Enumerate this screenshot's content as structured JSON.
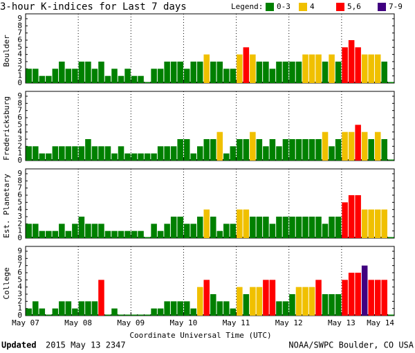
{
  "title": "3-hour K-indices for Last 7 days",
  "legend": {
    "title": "Legend:",
    "items": [
      {
        "label": "0-3",
        "color": "#008000",
        "min": 0,
        "max": 3
      },
      {
        "label": "4",
        "color": "#f0c000",
        "min": 4,
        "max": 4
      },
      {
        "label": "5,6",
        "color": "#ff0000",
        "min": 5,
        "max": 6
      },
      {
        "label": "7-9",
        "color": "#400080",
        "min": 7,
        "max": 9
      }
    ]
  },
  "x_axis": {
    "label": "Coordinate Universal Time (UTC)",
    "ticks": [
      "May 07",
      "May 08",
      "May 09",
      "May 10",
      "May 11",
      "May 12",
      "May 13",
      "May 14"
    ]
  },
  "footer": {
    "updated": "Updated",
    "timestamp": "2015 May 13 2347",
    "source": "NOAA/SWPC Boulder, CO USA"
  },
  "chart_data": [
    {
      "type": "bar",
      "ylabel": "Boulder",
      "ylim": [
        0,
        9
      ],
      "yticks": [
        0,
        1,
        2,
        3,
        4,
        5,
        6,
        7,
        8,
        9
      ],
      "values": [
        2,
        2,
        1,
        1,
        2,
        3,
        2,
        2,
        3,
        3,
        2,
        3,
        1,
        2,
        1,
        2,
        1,
        1,
        0,
        2,
        2,
        3,
        3,
        3,
        2,
        3,
        3,
        4,
        3,
        3,
        2,
        2,
        4,
        5,
        4,
        3,
        3,
        2,
        3,
        3,
        3,
        3,
        4,
        4,
        4,
        3,
        4,
        3,
        5,
        6,
        5,
        4,
        4,
        4,
        3,
        0
      ]
    },
    {
      "type": "bar",
      "ylabel": "Fredericksburg",
      "ylim": [
        0,
        9
      ],
      "yticks": [
        0,
        1,
        2,
        3,
        4,
        5,
        6,
        7,
        8,
        9
      ],
      "values": [
        2,
        2,
        1,
        1,
        2,
        2,
        2,
        2,
        2,
        3,
        2,
        2,
        2,
        1,
        2,
        1,
        1,
        1,
        1,
        1,
        2,
        2,
        2,
        3,
        3,
        1,
        2,
        3,
        3,
        4,
        1,
        2,
        3,
        3,
        4,
        3,
        2,
        3,
        2,
        3,
        3,
        3,
        3,
        3,
        3,
        4,
        2,
        3,
        4,
        4,
        5,
        4,
        3,
        4,
        3,
        0
      ]
    },
    {
      "type": "bar",
      "ylabel": "Est. Planetary",
      "ylim": [
        0,
        9
      ],
      "yticks": [
        0,
        1,
        2,
        3,
        4,
        5,
        6,
        7,
        8,
        9
      ],
      "values": [
        2,
        2,
        1,
        1,
        1,
        2,
        1,
        2,
        3,
        2,
        2,
        2,
        1,
        1,
        1,
        1,
        1,
        1,
        0,
        2,
        1,
        2,
        3,
        3,
        2,
        2,
        3,
        4,
        3,
        1,
        2,
        2,
        4,
        4,
        3,
        3,
        3,
        2,
        3,
        3,
        3,
        3,
        3,
        3,
        3,
        2,
        3,
        3,
        5,
        6,
        6,
        4,
        4,
        4,
        4,
        0
      ]
    },
    {
      "type": "bar",
      "ylabel": "College",
      "ylim": [
        0,
        9
      ],
      "yticks": [
        0,
        1,
        2,
        3,
        4,
        5,
        6,
        7,
        8,
        9
      ],
      "values": [
        1,
        2,
        1,
        0,
        1,
        2,
        2,
        1,
        2,
        2,
        2,
        5,
        0,
        1,
        0,
        0,
        0,
        0,
        0,
        1,
        1,
        2,
        2,
        2,
        2,
        1,
        4,
        5,
        3,
        2,
        2,
        1,
        4,
        3,
        4,
        4,
        5,
        5,
        2,
        2,
        3,
        4,
        4,
        4,
        5,
        3,
        3,
        3,
        5,
        6,
        6,
        7,
        5,
        5,
        5,
        0
      ]
    }
  ]
}
